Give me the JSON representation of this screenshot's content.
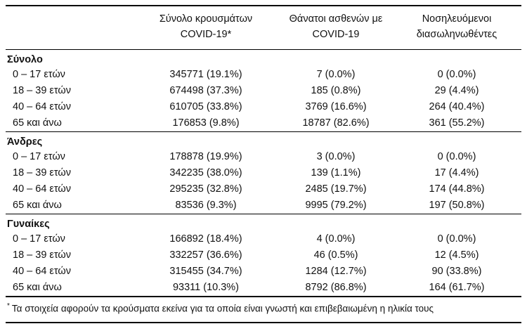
{
  "header": {
    "columns": [
      {
        "line1": "Σύνολο κρουσμάτων",
        "line2": "COVID-19*"
      },
      {
        "line1": "Θάνατοι ασθενών με",
        "line2": "COVID-19"
      },
      {
        "line1": "Νοσηλευόμενοι",
        "line2": "διασωληνωθέντες"
      }
    ]
  },
  "sections": [
    {
      "label": "Σύνολο",
      "rows": [
        {
          "label": "0 – 17 ετών",
          "cases": "345771 (19.1%)",
          "deaths": "7 (0.0%)",
          "intubated": "0 (0.0%)"
        },
        {
          "label": "18 – 39 ετών",
          "cases": "674498 (37.3%)",
          "deaths": "185 (0.8%)",
          "intubated": "29 (4.4%)"
        },
        {
          "label": "40 – 64 ετών",
          "cases": "610705 (33.8%)",
          "deaths": "3769 (16.6%)",
          "intubated": "264 (40.4%)"
        },
        {
          "label": "65 και άνω",
          "cases": "176853 (9.8%)",
          "deaths": "18787 (82.6%)",
          "intubated": "361 (55.2%)"
        }
      ]
    },
    {
      "label": "Άνδρες",
      "rows": [
        {
          "label": "0 – 17 ετών",
          "cases": "178878 (19.9%)",
          "deaths": "3 (0.0%)",
          "intubated": "0 (0.0%)"
        },
        {
          "label": "18 – 39 ετών",
          "cases": "342235 (38.0%)",
          "deaths": "139 (1.1%)",
          "intubated": "17 (4.4%)"
        },
        {
          "label": "40 – 64 ετών",
          "cases": "295235 (32.8%)",
          "deaths": "2485 (19.7%)",
          "intubated": "174 (44.8%)"
        },
        {
          "label": "65 και άνω",
          "cases": "83536 (9.3%)",
          "deaths": "9995 (79.2%)",
          "intubated": "197 (50.8%)"
        }
      ]
    },
    {
      "label": "Γυναίκες",
      "rows": [
        {
          "label": "0 – 17 ετών",
          "cases": "166892 (18.4%)",
          "deaths": "4 (0.0%)",
          "intubated": "0 (0.0%)"
        },
        {
          "label": "18 – 39 ετών",
          "cases": "332257 (36.6%)",
          "deaths": "46 (0.5%)",
          "intubated": "12 (4.5%)"
        },
        {
          "label": "40 – 64 ετών",
          "cases": "315455 (34.7%)",
          "deaths": "1284 (12.7%)",
          "intubated": "90 (33.8%)"
        },
        {
          "label": "65 και άνω",
          "cases": "93311 (10.3%)",
          "deaths": "8792 (86.8%)",
          "intubated": "164 (61.7%)"
        }
      ]
    }
  ],
  "footnote": {
    "marker": "*",
    "text": "Τα στοιχεία αφορούν τα κρούσματα εκείνα για τα οποία είναι γνωστή και επιβεβαιωμένη η ηλικία τους"
  }
}
